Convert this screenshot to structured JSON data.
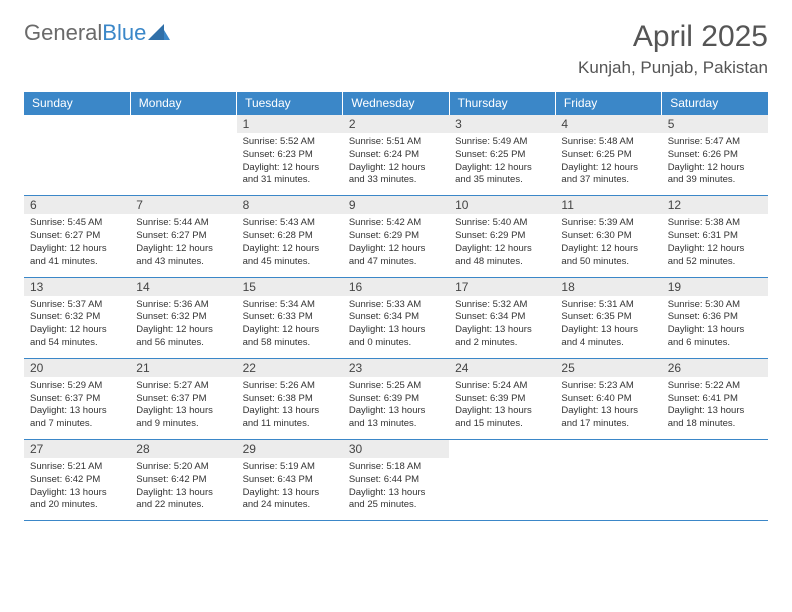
{
  "brand": {
    "part1": "General",
    "part2": "Blue"
  },
  "title": "April 2025",
  "location": "Kunjah, Punjab, Pakistan",
  "day_names": [
    "Sunday",
    "Monday",
    "Tuesday",
    "Wednesday",
    "Thursday",
    "Friday",
    "Saturday"
  ],
  "colors": {
    "header_bg": "#3b87c8",
    "header_text": "#ffffff",
    "daynum_bg": "#ececec",
    "text": "#333333",
    "title_text": "#555555",
    "rule": "#3b87c8"
  },
  "weeks": [
    [
      null,
      null,
      {
        "n": "1",
        "sunrise": "5:52 AM",
        "sunset": "6:23 PM",
        "daylight": "12 hours and 31 minutes."
      },
      {
        "n": "2",
        "sunrise": "5:51 AM",
        "sunset": "6:24 PM",
        "daylight": "12 hours and 33 minutes."
      },
      {
        "n": "3",
        "sunrise": "5:49 AM",
        "sunset": "6:25 PM",
        "daylight": "12 hours and 35 minutes."
      },
      {
        "n": "4",
        "sunrise": "5:48 AM",
        "sunset": "6:25 PM",
        "daylight": "12 hours and 37 minutes."
      },
      {
        "n": "5",
        "sunrise": "5:47 AM",
        "sunset": "6:26 PM",
        "daylight": "12 hours and 39 minutes."
      }
    ],
    [
      {
        "n": "6",
        "sunrise": "5:45 AM",
        "sunset": "6:27 PM",
        "daylight": "12 hours and 41 minutes."
      },
      {
        "n": "7",
        "sunrise": "5:44 AM",
        "sunset": "6:27 PM",
        "daylight": "12 hours and 43 minutes."
      },
      {
        "n": "8",
        "sunrise": "5:43 AM",
        "sunset": "6:28 PM",
        "daylight": "12 hours and 45 minutes."
      },
      {
        "n": "9",
        "sunrise": "5:42 AM",
        "sunset": "6:29 PM",
        "daylight": "12 hours and 47 minutes."
      },
      {
        "n": "10",
        "sunrise": "5:40 AM",
        "sunset": "6:29 PM",
        "daylight": "12 hours and 48 minutes."
      },
      {
        "n": "11",
        "sunrise": "5:39 AM",
        "sunset": "6:30 PM",
        "daylight": "12 hours and 50 minutes."
      },
      {
        "n": "12",
        "sunrise": "5:38 AM",
        "sunset": "6:31 PM",
        "daylight": "12 hours and 52 minutes."
      }
    ],
    [
      {
        "n": "13",
        "sunrise": "5:37 AM",
        "sunset": "6:32 PM",
        "daylight": "12 hours and 54 minutes."
      },
      {
        "n": "14",
        "sunrise": "5:36 AM",
        "sunset": "6:32 PM",
        "daylight": "12 hours and 56 minutes."
      },
      {
        "n": "15",
        "sunrise": "5:34 AM",
        "sunset": "6:33 PM",
        "daylight": "12 hours and 58 minutes."
      },
      {
        "n": "16",
        "sunrise": "5:33 AM",
        "sunset": "6:34 PM",
        "daylight": "13 hours and 0 minutes."
      },
      {
        "n": "17",
        "sunrise": "5:32 AM",
        "sunset": "6:34 PM",
        "daylight": "13 hours and 2 minutes."
      },
      {
        "n": "18",
        "sunrise": "5:31 AM",
        "sunset": "6:35 PM",
        "daylight": "13 hours and 4 minutes."
      },
      {
        "n": "19",
        "sunrise": "5:30 AM",
        "sunset": "6:36 PM",
        "daylight": "13 hours and 6 minutes."
      }
    ],
    [
      {
        "n": "20",
        "sunrise": "5:29 AM",
        "sunset": "6:37 PM",
        "daylight": "13 hours and 7 minutes."
      },
      {
        "n": "21",
        "sunrise": "5:27 AM",
        "sunset": "6:37 PM",
        "daylight": "13 hours and 9 minutes."
      },
      {
        "n": "22",
        "sunrise": "5:26 AM",
        "sunset": "6:38 PM",
        "daylight": "13 hours and 11 minutes."
      },
      {
        "n": "23",
        "sunrise": "5:25 AM",
        "sunset": "6:39 PM",
        "daylight": "13 hours and 13 minutes."
      },
      {
        "n": "24",
        "sunrise": "5:24 AM",
        "sunset": "6:39 PM",
        "daylight": "13 hours and 15 minutes."
      },
      {
        "n": "25",
        "sunrise": "5:23 AM",
        "sunset": "6:40 PM",
        "daylight": "13 hours and 17 minutes."
      },
      {
        "n": "26",
        "sunrise": "5:22 AM",
        "sunset": "6:41 PM",
        "daylight": "13 hours and 18 minutes."
      }
    ],
    [
      {
        "n": "27",
        "sunrise": "5:21 AM",
        "sunset": "6:42 PM",
        "daylight": "13 hours and 20 minutes."
      },
      {
        "n": "28",
        "sunrise": "5:20 AM",
        "sunset": "6:42 PM",
        "daylight": "13 hours and 22 minutes."
      },
      {
        "n": "29",
        "sunrise": "5:19 AM",
        "sunset": "6:43 PM",
        "daylight": "13 hours and 24 minutes."
      },
      {
        "n": "30",
        "sunrise": "5:18 AM",
        "sunset": "6:44 PM",
        "daylight": "13 hours and 25 minutes."
      },
      null,
      null,
      null
    ]
  ],
  "labels": {
    "sunrise": "Sunrise:",
    "sunset": "Sunset:",
    "daylight": "Daylight:"
  }
}
